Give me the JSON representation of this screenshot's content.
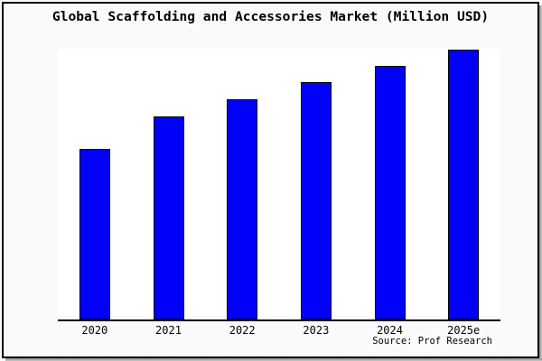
{
  "window": {
    "background": "#fafafa",
    "frame_border_color": "#000000",
    "shadow_color": "#8f8f8f"
  },
  "chart_data": {
    "type": "bar",
    "title": "Global Scaffolding and Accessories Market (Million USD)",
    "categories": [
      "2020",
      "2021",
      "2022",
      "2023",
      "2024",
      "2025e"
    ],
    "values": [
      63.0,
      75.0,
      81.3,
      87.7,
      93.7,
      99.7
    ],
    "values_note": "No y-axis labels shown; values estimated as percent of plot height from bar pixels",
    "ylim": [
      0,
      100
    ],
    "xlabel": "",
    "ylabel": "",
    "y_axis_visible": false,
    "gridlines": false,
    "legend": false,
    "plot_background": "#ffffff",
    "bar_color": "#0000fb",
    "bar_border_color": "#000000",
    "source_label": "Source: Prof Research"
  }
}
